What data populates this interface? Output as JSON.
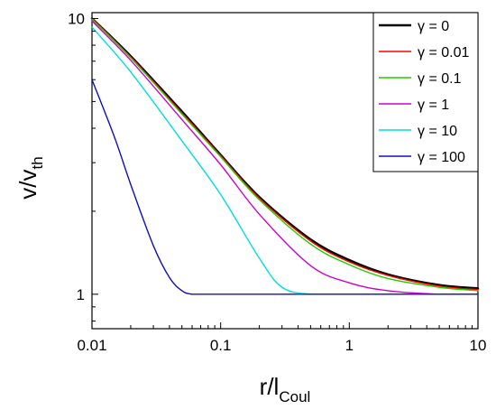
{
  "chart_data": {
    "type": "line",
    "xlabel_main": "r/l",
    "xlabel_sub": "Coul",
    "ylabel_main": "v/v",
    "ylabel_sub": "th",
    "x_scale": "log",
    "y_scale": "log",
    "xlim": [
      0.01,
      10
    ],
    "ylim": [
      0.75,
      10.5
    ],
    "x_ticks": [
      {
        "value": 0.01,
        "label": "0.01"
      },
      {
        "value": 0.1,
        "label": "0.1"
      },
      {
        "value": 1,
        "label": "1"
      },
      {
        "value": 10,
        "label": "10"
      }
    ],
    "y_ticks": [
      {
        "value": 1,
        "label": "1"
      },
      {
        "value": 10,
        "label": "10"
      }
    ],
    "grid": false,
    "legend_position": "top-right",
    "series": [
      {
        "name": "γ = 0",
        "color": "#000000",
        "width": 2.5,
        "x": [
          0.01,
          0.02,
          0.05,
          0.1,
          0.2,
          0.5,
          1,
          2,
          5,
          10
        ],
        "y": [
          10.0,
          7.3,
          4.6,
          3.2,
          2.25,
          1.58,
          1.33,
          1.18,
          1.08,
          1.05
        ]
      },
      {
        "name": "γ = 0.01",
        "color": "#ff0000",
        "width": 1.4,
        "x": [
          0.01,
          0.02,
          0.05,
          0.1,
          0.2,
          0.5,
          1,
          2,
          5,
          10
        ],
        "y": [
          10.0,
          7.25,
          4.55,
          3.18,
          2.23,
          1.56,
          1.31,
          1.17,
          1.07,
          1.04
        ]
      },
      {
        "name": "γ = 0.1",
        "color": "#22cc00",
        "width": 1.4,
        "x": [
          0.01,
          0.02,
          0.05,
          0.1,
          0.2,
          0.5,
          1,
          2,
          5,
          10
        ],
        "y": [
          9.95,
          7.2,
          4.5,
          3.15,
          2.2,
          1.52,
          1.28,
          1.14,
          1.06,
          1.03
        ]
      },
      {
        "name": "γ = 1",
        "color": "#cc00cc",
        "width": 1.4,
        "x": [
          0.01,
          0.02,
          0.05,
          0.1,
          0.2,
          0.5,
          1,
          2,
          5,
          10
        ],
        "y": [
          9.8,
          7.05,
          4.3,
          2.95,
          1.95,
          1.27,
          1.1,
          1.03,
          1.0,
          1.0
        ]
      },
      {
        "name": "γ = 10",
        "color": "#00dddd",
        "width": 1.4,
        "x": [
          0.01,
          0.02,
          0.05,
          0.1,
          0.2,
          0.3,
          0.5,
          1,
          2,
          5,
          10
        ],
        "y": [
          9.3,
          6.4,
          3.6,
          2.3,
          1.35,
          1.06,
          1.0,
          1.0,
          1.0,
          1.0,
          1.0
        ]
      },
      {
        "name": "γ = 100",
        "color": "#1010bb",
        "width": 1.4,
        "x": [
          0.01,
          0.015,
          0.02,
          0.03,
          0.04,
          0.05,
          0.06,
          0.08,
          0.1,
          0.2,
          0.5,
          1,
          10
        ],
        "y": [
          6.0,
          3.7,
          2.5,
          1.5,
          1.15,
          1.03,
          1.0,
          1.0,
          1.0,
          1.0,
          1.0,
          1.0,
          1.0
        ]
      }
    ]
  }
}
